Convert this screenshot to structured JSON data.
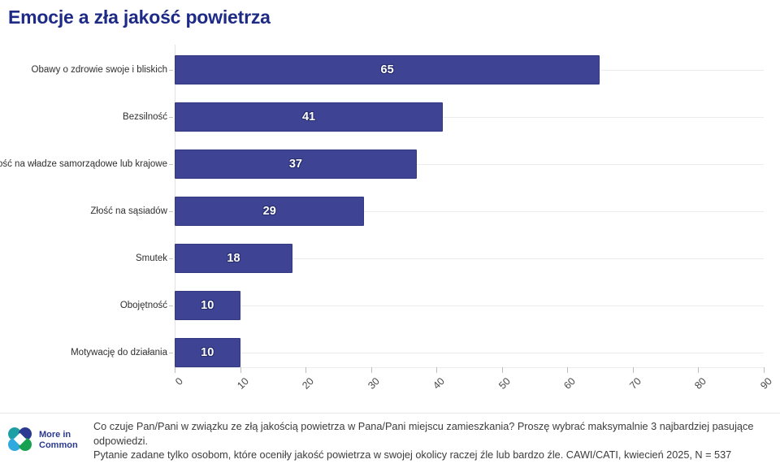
{
  "title": "Emocje a zła jakość powietrza",
  "chart_data": {
    "type": "bar",
    "orientation": "horizontal",
    "title": "Emocje a zła jakość powietrza",
    "categories": [
      "Obawy o zdrowie swoje i bliskich",
      "Bezsilność",
      "Złość na władze samorządowe lub krajowe",
      "Złość na sąsiadów",
      "Smutek",
      "Obojętność",
      "Motywację do działania"
    ],
    "values": [
      65,
      41,
      37,
      29,
      18,
      10,
      10
    ],
    "xlabel": "",
    "ylabel": "",
    "xlim": [
      0,
      90
    ],
    "xticks": [
      0,
      10,
      20,
      30,
      40,
      50,
      60,
      70,
      80,
      90
    ],
    "grid": "horizontal-category-gridlines",
    "legend": "none",
    "bar_color": "#3e4394",
    "value_label_color": "#ffffff"
  },
  "footer": {
    "question": "Co czuje Pan/Pani w związku ze złą jakością powietrza w Pana/Pani miejscu zamieszkania? Proszę wybrać maksymalnie 3 najbardziej pasujące odpowiedzi.",
    "note": "Pytanie zadane tylko osobom, które oceniły jakość powietrza w swojej okolicy raczej źle lub bardzo źle. CAWI/CATI, kwiecień 2025, N = 537"
  },
  "logo": {
    "line1": "More in",
    "line2": "Common",
    "icon": "more-in-common-four-circles-icon"
  },
  "colors": {
    "title": "#1d2b87",
    "bar": "#3e4394",
    "bar_border": "#333a80",
    "gridline": "#ececec",
    "logo_navy": "#2b3a90",
    "logo_teal": "#1d9fa4",
    "logo_blue": "#2fa9de",
    "logo_green": "#18a150"
  }
}
